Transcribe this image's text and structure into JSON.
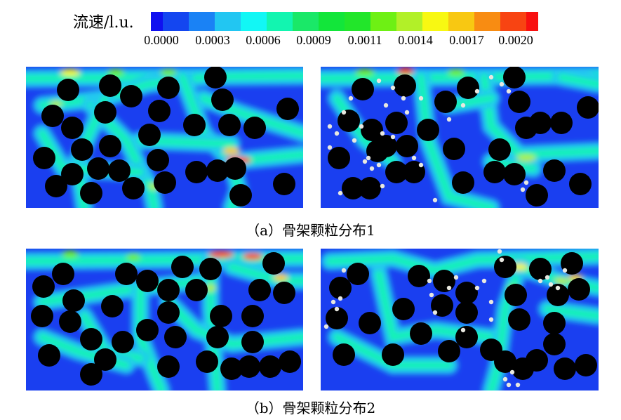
{
  "colorbar": {
    "label": "流速/l.u.",
    "ticks": [
      "0.0000",
      "0.0003",
      "0.0006",
      "0.0009",
      "0.0011",
      "0.0014",
      "0.0017",
      "0.0020"
    ],
    "range": [
      0,
      0.002
    ],
    "colors": [
      "#1010f0",
      "#1446f0",
      "#1a82f5",
      "#22c6f2",
      "#12f7f5",
      "#12f5b0",
      "#1ae868",
      "#12e63a",
      "#22e62a",
      "#6ef014",
      "#b2f028",
      "#f8f812",
      "#f8c812",
      "#f88c12",
      "#f84412",
      "#f81010"
    ]
  },
  "field_colors": {
    "background": "#1a3ff0",
    "obstacle": "#000000",
    "particle": "#e8e8e0"
  },
  "captions": {
    "a": "（a）骨架颗粒分布1",
    "b": "（b）骨架颗粒分布2"
  }
}
